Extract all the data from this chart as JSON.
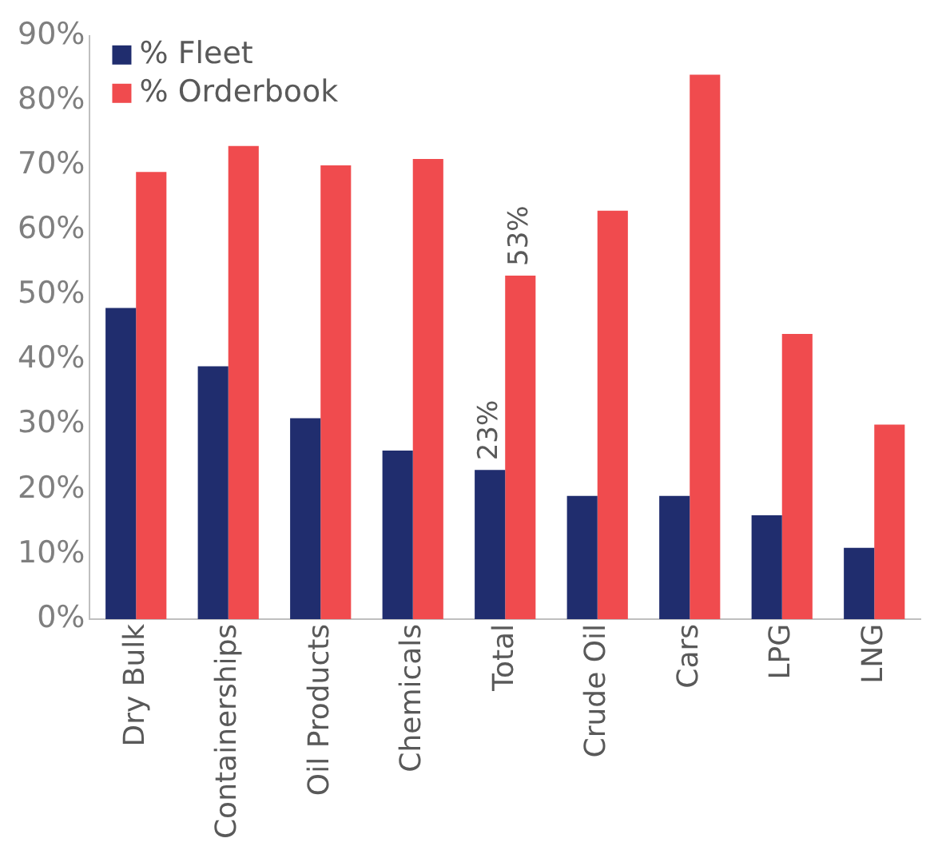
{
  "chart_data": {
    "type": "bar",
    "categories": [
      "Dry Bulk",
      "Containerships",
      "Oil Products",
      "Chemicals",
      "Total",
      "Crude Oil",
      "Cars",
      "LPG",
      "LNG"
    ],
    "series": [
      {
        "name": "% Fleet",
        "color": "#202d6e",
        "values": [
          48,
          39,
          31,
          26,
          23,
          19,
          19,
          16,
          11
        ],
        "value_labels": [
          null,
          null,
          null,
          null,
          "23%",
          null,
          null,
          null,
          null
        ]
      },
      {
        "name": "% Orderbook",
        "color": "#f04b4e",
        "values": [
          69,
          73,
          70,
          71,
          53,
          63,
          84,
          44,
          30
        ],
        "value_labels": [
          null,
          null,
          null,
          null,
          "53%",
          null,
          null,
          null,
          null
        ]
      }
    ],
    "ylim": [
      0,
      90
    ],
    "yticks": [
      {
        "value": 0,
        "label": "0%"
      },
      {
        "value": 10,
        "label": "10%"
      },
      {
        "value": 20,
        "label": "20%"
      },
      {
        "value": 30,
        "label": "30%"
      },
      {
        "value": 40,
        "label": "40%"
      },
      {
        "value": 50,
        "label": "50%"
      },
      {
        "value": 60,
        "label": "60%"
      },
      {
        "value": 70,
        "label": "70%"
      },
      {
        "value": 80,
        "label": "80%"
      },
      {
        "value": 90,
        "label": "90%"
      }
    ],
    "grid": false,
    "legend": "top left"
  }
}
